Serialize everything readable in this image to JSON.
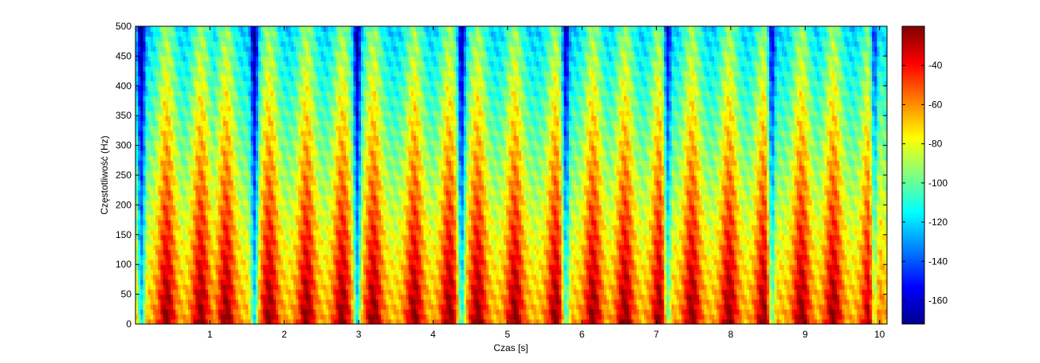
{
  "chart_data": {
    "type": "heatmap",
    "title": "",
    "xlabel": "Czas [s]",
    "ylabel": "Częstotliwość (Hz)",
    "xlim": [
      0,
      10.1
    ],
    "ylim": [
      0,
      500
    ],
    "x_ticks": [
      1,
      2,
      3,
      4,
      5,
      6,
      7,
      8,
      9,
      10
    ],
    "y_ticks": [
      0,
      50,
      100,
      150,
      200,
      250,
      300,
      350,
      400,
      450,
      500
    ],
    "colorbar": {
      "range": [
        -172,
        -20
      ],
      "ticks": [
        -40,
        -60,
        -80,
        -100,
        -120,
        -140,
        -160
      ],
      "colormap": "jet"
    },
    "pulse_times": [
      0.42,
      0.88,
      1.22,
      1.8,
      2.3,
      2.78,
      3.2,
      3.75,
      4.22,
      4.6,
      5.1,
      5.65,
      6.15,
      6.58,
      7.05,
      7.48,
      7.98,
      8.45,
      8.95,
      9.38,
      9.88
    ],
    "quiet_times": [
      0.08,
      1.6,
      2.98,
      4.38,
      5.78,
      7.15,
      8.55,
      9.93
    ]
  },
  "colors": {
    "axis": "#000000",
    "background": "#ffffff"
  }
}
